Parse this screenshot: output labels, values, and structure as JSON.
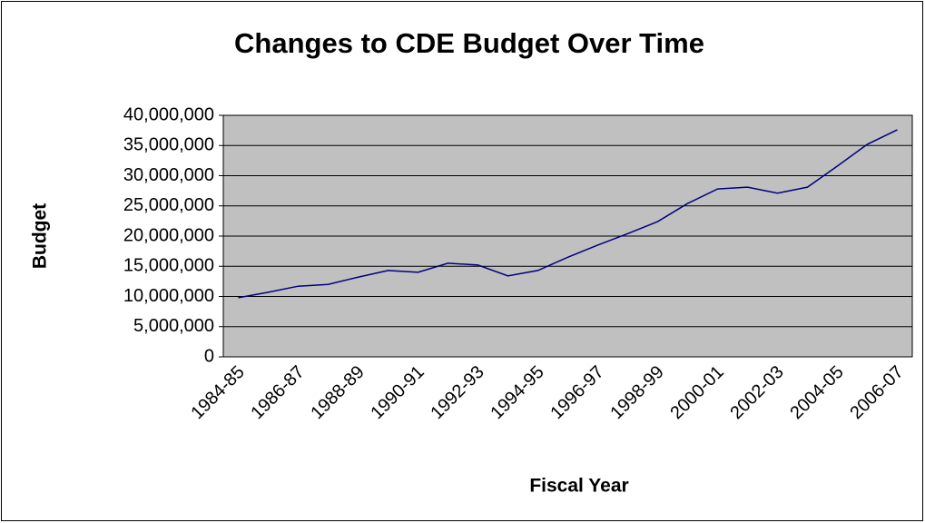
{
  "chart_data": {
    "type": "line",
    "title": "Changes to CDE Budget Over Time",
    "x_label": "Fiscal Year",
    "y_label": "Budget",
    "categories": [
      "1984-85",
      null,
      "1986-87",
      null,
      "1988-89",
      null,
      "1990-91",
      null,
      "1992-93",
      null,
      "1994-95",
      null,
      "1996-97",
      null,
      "1998-99",
      null,
      "2000-01",
      null,
      "2002-03",
      null,
      "2004-05",
      null,
      "2006-07"
    ],
    "series": [
      {
        "name": "Budget",
        "color": "#000080",
        "values": [
          9800000,
          10700000,
          11700000,
          12000000,
          13200000,
          14300000,
          14000000,
          15500000,
          15200000,
          13400000,
          14300000,
          16500000,
          18500000,
          20400000,
          22400000,
          25400000,
          27800000,
          28100000,
          27100000,
          28100000,
          31600000,
          35200000,
          37600000
        ]
      }
    ],
    "ylim": [
      0,
      40000000
    ],
    "yticks": [
      0,
      {
        "value": 5000000,
        "label": "5,000,000"
      },
      {
        "value": 10000000,
        "label": "10,000,000"
      },
      {
        "value": 15000000,
        "label": "15,000,000"
      },
      {
        "value": 20000000,
        "label": "20,000,000"
      },
      {
        "value": 25000000,
        "label": "25,000,000"
      },
      {
        "value": 30000000,
        "label": "30,000,000"
      },
      {
        "value": 35000000,
        "label": "35,000,000"
      },
      {
        "value": 40000000,
        "label": "40,000,000"
      }
    ],
    "grid": true
  }
}
